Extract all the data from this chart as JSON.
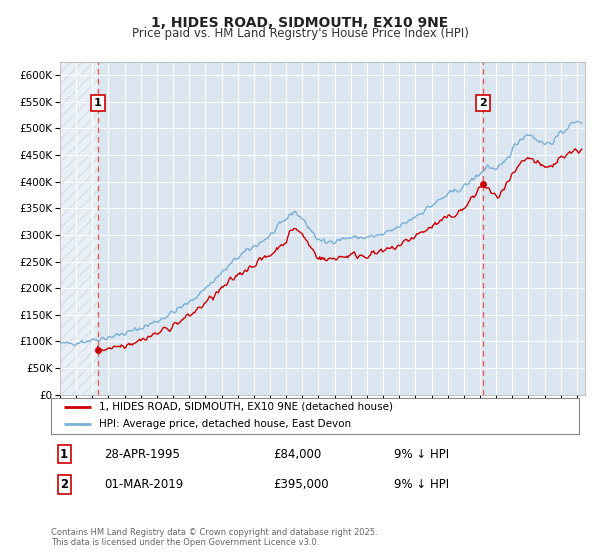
{
  "title": "1, HIDES ROAD, SIDMOUTH, EX10 9NE",
  "subtitle": "Price paid vs. HM Land Registry's House Price Index (HPI)",
  "legend_line1": "1, HIDES ROAD, SIDMOUTH, EX10 9NE (detached house)",
  "legend_line2": "HPI: Average price, detached house, East Devon",
  "footer": "Contains HM Land Registry data © Crown copyright and database right 2025.\nThis data is licensed under the Open Government Licence v3.0.",
  "transaction1_date": "28-APR-1995",
  "transaction1_price": "£84,000",
  "transaction1_hpi": "9% ↓ HPI",
  "transaction2_date": "01-MAR-2019",
  "transaction2_price": "£395,000",
  "transaction2_hpi": "9% ↓ HPI",
  "vline1_x": 1995.33,
  "vline2_x": 2019.17,
  "marker1_y": 84000,
  "marker2_y": 395000,
  "ylim": [
    0,
    625000
  ],
  "xlim_start": 1993.0,
  "xlim_end": 2025.5,
  "yticks": [
    0,
    50000,
    100000,
    150000,
    200000,
    250000,
    300000,
    350000,
    400000,
    450000,
    500000,
    550000,
    600000
  ],
  "background_color": "#dce6f1",
  "red_line_color": "#cc0000",
  "blue_line_color": "#7bafd4",
  "grid_color": "#ffffff",
  "vline_color": "#e06060"
}
